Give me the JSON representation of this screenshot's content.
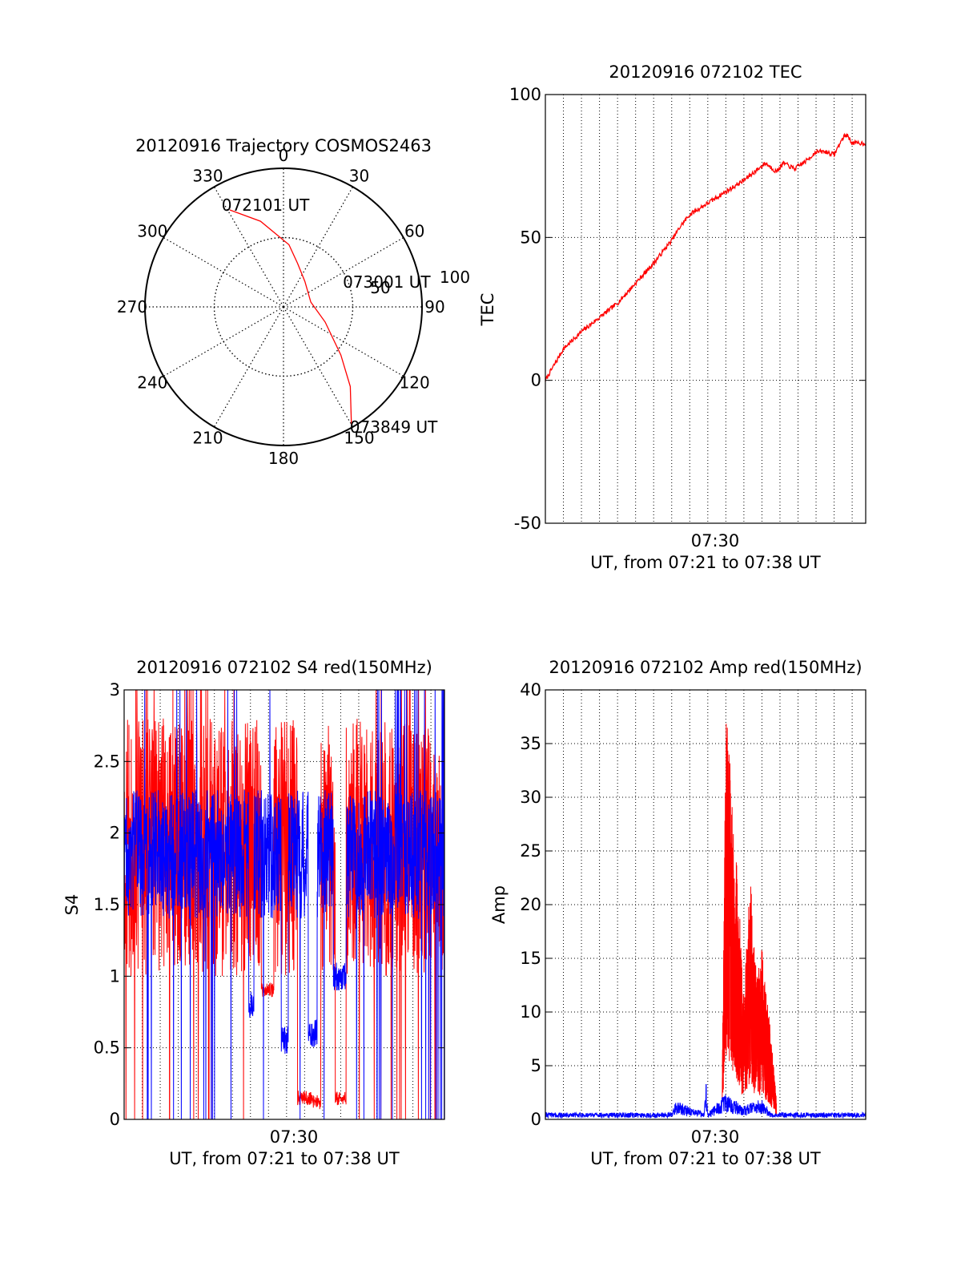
{
  "chart_data": [
    {
      "type": "polar",
      "title": "20120916 Trajectory COSMOS2463",
      "angle_labels": [
        "0",
        "30",
        "60",
        "90",
        "120",
        "150",
        "180",
        "210",
        "240",
        "270",
        "300",
        "330"
      ],
      "angles_deg": [
        0,
        30,
        60,
        90,
        120,
        150,
        180,
        210,
        240,
        270,
        300,
        330
      ],
      "radial_labels": [
        "50",
        "100"
      ],
      "radial_max": 100,
      "series": [
        {
          "color": "#ff0000",
          "points_az_r": [
            [
              331,
              80
            ],
            [
              345,
              64
            ],
            [
              5,
              45
            ],
            [
              18,
              33
            ],
            [
              40,
              24
            ],
            [
              80,
              20
            ],
            [
              110,
              32
            ],
            [
              130,
              54
            ],
            [
              140,
              75
            ],
            [
              150,
              98
            ]
          ]
        }
      ],
      "annotations": [
        {
          "text": "072101 UT",
          "az": 330,
          "r": 80
        },
        {
          "text": "073001 UT",
          "az": 80,
          "r": 20
        },
        {
          "text": "073849 UT",
          "az": 150,
          "r": 98
        }
      ]
    },
    {
      "type": "line",
      "title": "20120916 072102 TEC",
      "xlabel": "UT, from 07:21 to 07:38 UT",
      "ylabel": "TEC",
      "xlim_min": [
        0,
        17.75
      ],
      "ylim": [
        -50,
        100
      ],
      "yticks": [
        "100",
        "50",
        "0",
        "-50"
      ],
      "ytick_values": [
        100,
        50,
        0,
        -50
      ],
      "xtick_labels": [
        "07:30"
      ],
      "xtick_values_min": [
        9
      ],
      "grid": true,
      "series": [
        {
          "color": "#ff0000",
          "x_min": [
            0,
            1,
            2,
            3,
            4,
            5,
            6,
            7,
            7.5,
            8,
            9,
            10,
            11,
            12,
            12.2,
            12.8,
            13.2,
            13.8,
            14.5,
            15,
            15.5,
            16,
            16.5,
            16.7,
            17,
            17.75
          ],
          "y": [
            0,
            11,
            17,
            22,
            27,
            34,
            41,
            49,
            54,
            58,
            62,
            66,
            70,
            75,
            76,
            73,
            76,
            74,
            77,
            80,
            80,
            79,
            85,
            86,
            83,
            83
          ]
        }
      ]
    },
    {
      "type": "line",
      "title": "20120916 072102 S4 red(150MHz)",
      "xlabel": "UT, from 07:21 to 07:38 UT",
      "ylabel": "S4",
      "xlim_min": [
        0,
        17.75
      ],
      "ylim": [
        0,
        3
      ],
      "yticks": [
        "3",
        "2.5",
        "2",
        "1.5",
        "1",
        "0.5",
        "0"
      ],
      "ytick_values": [
        3,
        2.5,
        2,
        1.5,
        1,
        0.5,
        0
      ],
      "xtick_labels": [
        "07:30"
      ],
      "xtick_values_min": [
        9
      ],
      "grid": true,
      "series": [
        {
          "color": "#ff0000",
          "description_of_trace": "S4 red 150MHz"
        },
        {
          "color": "#0000ff",
          "description_of_trace": "S4 blue"
        }
      ]
    },
    {
      "type": "line",
      "title": "20120916 072102 Amp red(150MHz)",
      "xlabel": "UT, from 07:21 to 07:38 UT",
      "ylabel": "Amp",
      "xlim_min": [
        0,
        17.75
      ],
      "ylim": [
        0,
        40
      ],
      "yticks": [
        "40",
        "35",
        "30",
        "25",
        "20",
        "15",
        "10",
        "5",
        "0"
      ],
      "ytick_values": [
        40,
        35,
        30,
        25,
        20,
        15,
        10,
        5,
        0
      ],
      "xtick_labels": [
        "07:30"
      ],
      "xtick_values_min": [
        9
      ],
      "grid": true,
      "series": [
        {
          "color": "#ff0000",
          "x_min": [
            9.8,
            10.0,
            10.2,
            10.4,
            10.6,
            10.8,
            11.0,
            11.2,
            11.4,
            11.6,
            11.8,
            12.0,
            12.2,
            12.4,
            12.6,
            12.8
          ],
          "y": [
            5,
            37,
            36,
            27,
            24,
            18,
            12,
            19,
            22,
            15,
            14,
            16,
            12,
            10,
            6,
            2
          ]
        },
        {
          "color": "#0000ff",
          "x_min": [
            0,
            7,
            7.2,
            8.8,
            8.9,
            9.0,
            10.0,
            11.0,
            12.0,
            12.5,
            13,
            17.75
          ],
          "y": [
            0.4,
            0.4,
            1.1,
            0.4,
            2.3,
            0.4,
            1.5,
            0.8,
            1.2,
            0.4,
            0.4,
            0.4
          ]
        }
      ]
    }
  ]
}
